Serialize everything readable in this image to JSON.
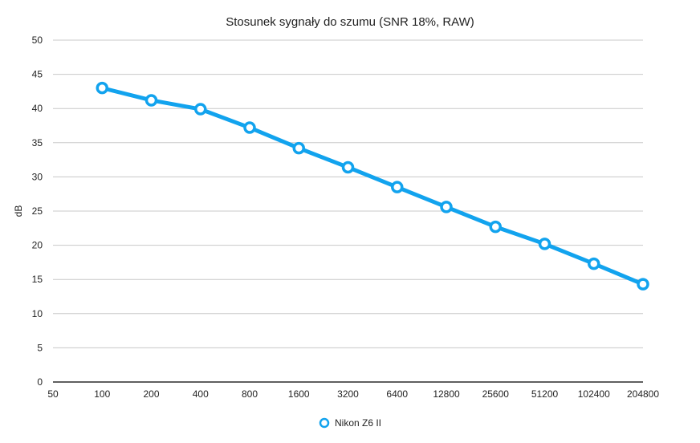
{
  "chart_data": {
    "type": "line",
    "title": "Stosunek sygnały do szumu (SNR 18%, RAW)",
    "xlabel": "",
    "ylabel": "dB",
    "categories": [
      "50",
      "100",
      "200",
      "400",
      "800",
      "1600",
      "3200",
      "6400",
      "12800",
      "25600",
      "51200",
      "102400",
      "204800"
    ],
    "ylim": [
      0,
      50
    ],
    "yticks": [
      "0",
      "5",
      "10",
      "15",
      "20",
      "25",
      "30",
      "35",
      "40",
      "45",
      "50"
    ],
    "grid": true,
    "legend_position": "bottom",
    "series": [
      {
        "name": "Nikon Z6 II",
        "color": "#12a3ee",
        "values": [
          null,
          43.0,
          41.2,
          39.9,
          37.2,
          34.2,
          31.4,
          28.5,
          25.6,
          22.7,
          20.2,
          17.3,
          14.3
        ]
      }
    ]
  }
}
